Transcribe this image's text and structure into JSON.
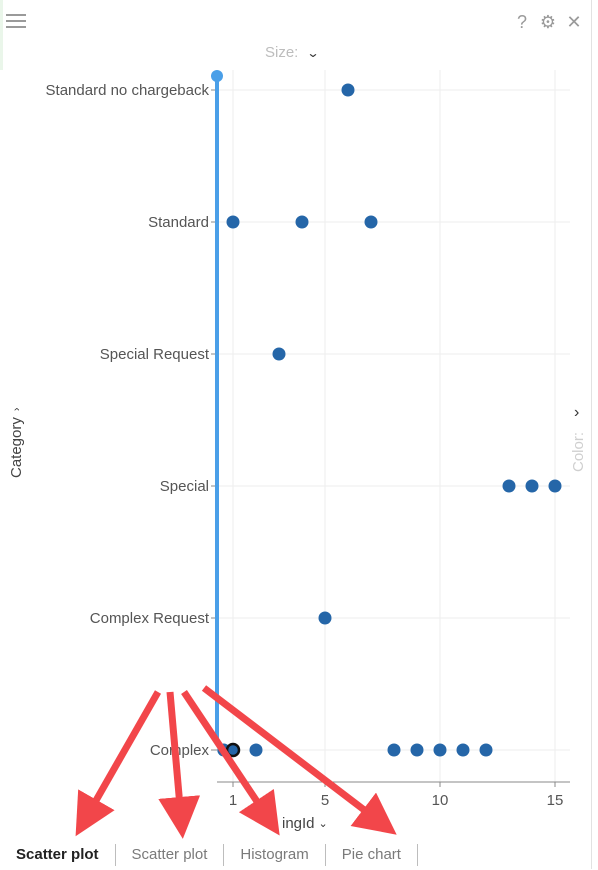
{
  "toolbar": {
    "size_label": "Size:",
    "color_label": "Color:",
    "help_label": "?"
  },
  "axes": {
    "y_label": "Category",
    "x_label": "ingId"
  },
  "chart_data": {
    "type": "scatter",
    "categories": [
      "Standard no chargeback",
      "Standard",
      "Special Request",
      "Special",
      "Complex Request",
      "Complex"
    ],
    "x_ticks": [
      1,
      5,
      10,
      15
    ],
    "xlim": [
      0.5,
      15.5
    ],
    "points": [
      {
        "x": 6,
        "category": "Standard no chargeback"
      },
      {
        "x": 1,
        "category": "Standard"
      },
      {
        "x": 4,
        "category": "Standard"
      },
      {
        "x": 7,
        "category": "Standard"
      },
      {
        "x": 3,
        "category": "Special Request"
      },
      {
        "x": 13,
        "category": "Special"
      },
      {
        "x": 14,
        "category": "Special"
      },
      {
        "x": 15,
        "category": "Special"
      },
      {
        "x": 5,
        "category": "Complex Request"
      },
      {
        "x": 0.6,
        "category": "Complex"
      },
      {
        "x": 1,
        "category": "Complex",
        "highlighted": true
      },
      {
        "x": 2,
        "category": "Complex"
      },
      {
        "x": 8,
        "category": "Complex"
      },
      {
        "x": 9,
        "category": "Complex"
      },
      {
        "x": 10,
        "category": "Complex"
      },
      {
        "x": 11,
        "category": "Complex"
      },
      {
        "x": 12,
        "category": "Complex"
      }
    ],
    "point_color": "#2566a8",
    "selection_line_color": "#4a9fe8"
  },
  "tabs": [
    {
      "label": "Scatter plot",
      "active": true
    },
    {
      "label": "Scatter plot",
      "active": false
    },
    {
      "label": "Histogram",
      "active": false
    },
    {
      "label": "Pie chart",
      "active": false
    }
  ]
}
